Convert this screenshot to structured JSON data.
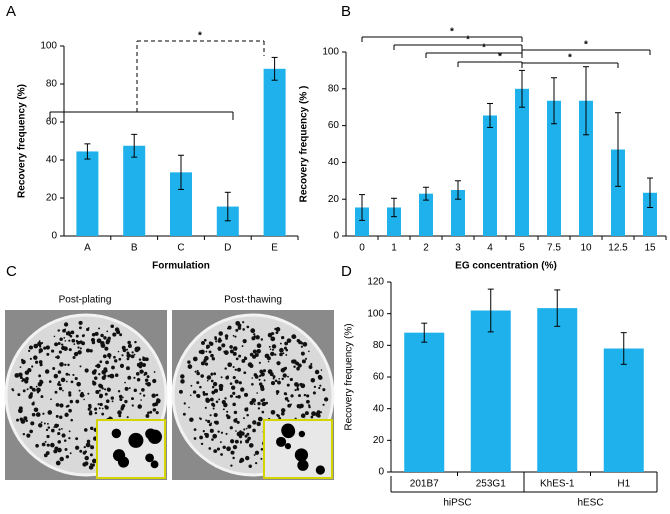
{
  "panels": [
    "A",
    "B",
    "C",
    "D"
  ],
  "images": [
    "Post-plating",
    "Post-thawing"
  ],
  "chart_data": [
    {
      "type": "bar",
      "x_label": "Formulation",
      "y_label": "Recovery frequency  (%)",
      "categories": [
        "A",
        "B",
        "C",
        "D",
        "E"
      ],
      "values": [
        44.5,
        47.5,
        33.5,
        15.5,
        88
      ],
      "errors": [
        4,
        6,
        9,
        7.5,
        6
      ],
      "color": "#1eb1ec",
      "ylim": [
        0,
        100
      ],
      "yticks": [
        0,
        20,
        40,
        60,
        80,
        100
      ],
      "annotations": [
        "*"
      ]
    },
    {
      "type": "bar",
      "x_label": "EG concentration (%)",
      "y_label": "Recovery frequency (% )",
      "categories": [
        "0",
        "1",
        "2",
        "3",
        "4",
        "5",
        "7.5",
        "10",
        "12.5",
        "15"
      ],
      "values": [
        15.5,
        15.5,
        23,
        25,
        65.5,
        80,
        73.5,
        73.5,
        47,
        23.5
      ],
      "errors": [
        7,
        5,
        3.5,
        5,
        6.5,
        10,
        12.5,
        18.5,
        20,
        8
      ],
      "color": "#1eb1ec",
      "ylim": [
        0,
        100
      ],
      "yticks": [
        0,
        20,
        40,
        60,
        80,
        100
      ],
      "annotations": [
        "*",
        "*",
        "*",
        "*",
        "*",
        "*"
      ]
    },
    {
      "type": "bar",
      "y_label": "Recovery frequency  (%)",
      "categories": [
        "201B7",
        "253G1",
        "KhES-1",
        "H1"
      ],
      "values": [
        88,
        102,
        103.5,
        78
      ],
      "errors": [
        6,
        13.5,
        11.5,
        10
      ],
      "color": "#1eb1ec",
      "ylim": [
        0,
        120
      ],
      "yticks": [
        0,
        20,
        40,
        60,
        80,
        100,
        120
      ],
      "groups": [
        "hiPSC",
        "hESC"
      ]
    }
  ]
}
